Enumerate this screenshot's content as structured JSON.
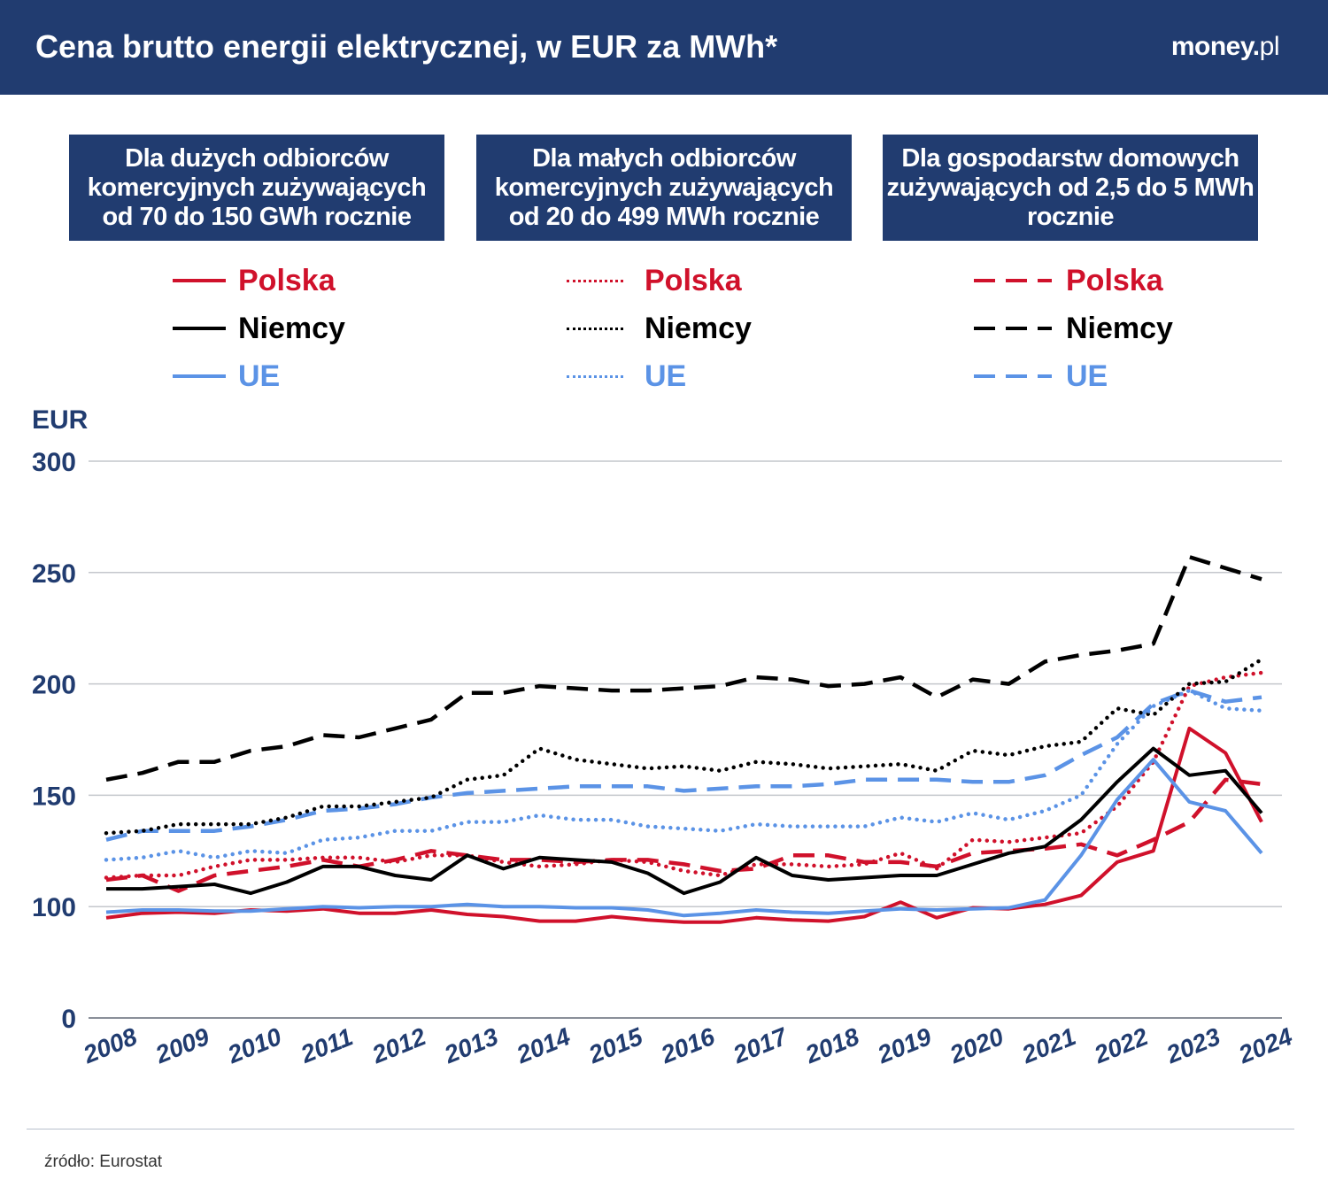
{
  "header": {
    "title": "Cena brutto energii elektrycznej, w EUR za MWh*",
    "logo": "money.pl"
  },
  "groups": [
    {
      "title": "Dla dużych odbiorców komercyjnych zużywających od 70 do 150 GWh rocznie",
      "style": "solid"
    },
    {
      "title": "Dla małych odbiorców komercyjnych zużywających od 20 do 499 MWh rocznie",
      "style": "dotted"
    },
    {
      "title": "Dla gospodarstw domowych zużywających od 2,5 do 5 MWh rocznie",
      "style": "dashed"
    }
  ],
  "legend_labels": [
    "Polska",
    "Niemcy",
    "UE"
  ],
  "colors": {
    "Polska": "#d0112b",
    "Niemcy": "#000000",
    "UE": "#5b93e6",
    "header": "#213c70"
  },
  "source": "źródło: Eurostat",
  "chart_data": {
    "type": "line",
    "ylabel": "EUR",
    "yticks": [
      0,
      100,
      150,
      200,
      250,
      300
    ],
    "ylim": [
      0,
      300
    ],
    "grid": true,
    "xticks": [
      "2008",
      "2009",
      "2010",
      "2011",
      "2012",
      "2013",
      "2014",
      "2015",
      "2016",
      "2017",
      "2018",
      "2019",
      "2020",
      "2021",
      "2022",
      "2023",
      "2024"
    ],
    "x_note_points_per_year": 2,
    "series": [
      {
        "name": "Polska",
        "group": 0,
        "style": "solid",
        "values": [
          90,
          94,
          95,
          94,
          97,
          96,
          98,
          94,
          94,
          97,
          93,
          91,
          87,
          87,
          91,
          88,
          86,
          86,
          90,
          88,
          87,
          91,
          102,
          90,
          99,
          98,
          101,
          105,
          120,
          125,
          180,
          169,
          138
        ]
      },
      {
        "name": "Niemcy",
        "group": 0,
        "style": "solid",
        "values": [
          108,
          108,
          109,
          110,
          106,
          111,
          118,
          118,
          114,
          112,
          123,
          117,
          122,
          121,
          120,
          115,
          106,
          111,
          122,
          114,
          112,
          113,
          114,
          114,
          119,
          124,
          127,
          139,
          156,
          171,
          159,
          161,
          142
        ]
      },
      {
        "name": "UE",
        "group": 0,
        "style": "solid",
        "values": [
          95,
          97,
          97,
          96,
          96,
          98,
          100,
          99,
          100,
          100,
          101,
          100,
          100,
          99,
          99,
          97,
          92,
          94,
          97,
          95,
          94,
          96,
          98,
          97,
          98,
          99,
          103,
          123,
          148,
          166,
          147,
          143,
          124
        ]
      },
      {
        "name": "Polska",
        "group": 1,
        "style": "dotted",
        "values": [
          113,
          114,
          114,
          118,
          121,
          121,
          122,
          122,
          120,
          123,
          123,
          120,
          118,
          119,
          121,
          120,
          116,
          114,
          119,
          119,
          118,
          119,
          124,
          117,
          130,
          129,
          131,
          133,
          145,
          165,
          199,
          203,
          205
        ]
      },
      {
        "name": "Niemcy",
        "group": 1,
        "style": "dotted",
        "values": [
          133,
          134,
          137,
          137,
          137,
          140,
          145,
          145,
          147,
          149,
          157,
          159,
          171,
          166,
          164,
          162,
          163,
          161,
          165,
          164,
          162,
          163,
          164,
          161,
          170,
          168,
          172,
          174,
          189,
          186,
          200,
          201,
          211
        ]
      },
      {
        "name": "UE",
        "group": 1,
        "style": "dotted",
        "values": [
          121,
          122,
          125,
          122,
          125,
          124,
          130,
          131,
          134,
          134,
          138,
          138,
          141,
          139,
          139,
          136,
          135,
          134,
          137,
          136,
          136,
          136,
          140,
          138,
          142,
          139,
          143,
          150,
          173,
          190,
          197,
          189,
          188
        ]
      },
      {
        "name": "Polska",
        "group": 2,
        "style": "dashed",
        "values": [
          112,
          114,
          107,
          114,
          116,
          118,
          121,
          118,
          121,
          125,
          123,
          121,
          121,
          120,
          121,
          121,
          119,
          116,
          117,
          123,
          123,
          120,
          120,
          118,
          124,
          125,
          126,
          128,
          123,
          130,
          138,
          157,
          155
        ]
      },
      {
        "name": "Niemcy",
        "group": 2,
        "style": "dashed",
        "values": [
          157,
          160,
          165,
          165,
          170,
          172,
          177,
          176,
          180,
          184,
          196,
          196,
          199,
          198,
          197,
          197,
          198,
          199,
          203,
          202,
          199,
          200,
          203,
          194,
          202,
          200,
          210,
          213,
          215,
          218,
          257,
          252,
          247
        ]
      },
      {
        "name": "UE",
        "group": 2,
        "style": "dashed",
        "values": [
          130,
          134,
          134,
          134,
          136,
          139,
          143,
          144,
          146,
          149,
          151,
          152,
          153,
          154,
          154,
          154,
          152,
          153,
          154,
          154,
          155,
          157,
          157,
          157,
          156,
          156,
          159,
          168,
          176,
          191,
          197,
          192,
          194
        ]
      }
    ]
  }
}
